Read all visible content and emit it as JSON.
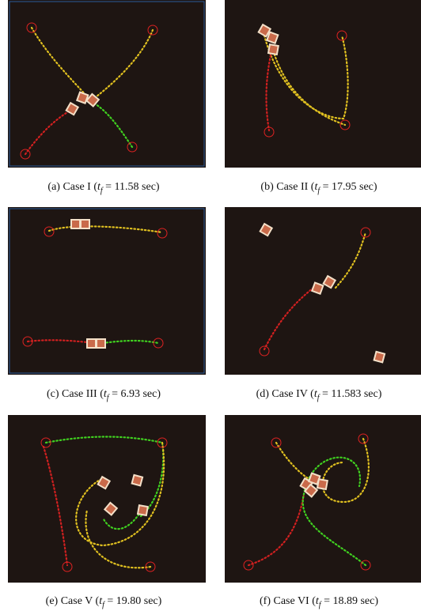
{
  "figure": {
    "captions": [
      {
        "lead": "(a) Case I (",
        "var": "t",
        "sub": "f",
        "rest": " = 11.58 sec)"
      },
      {
        "lead": "(b) Case II (",
        "var": "t",
        "sub": "f",
        "rest": " = 17.95 sec)"
      },
      {
        "lead": "(c) Case III (",
        "var": "t",
        "sub": "f",
        "rest": " = 6.93 sec)"
      },
      {
        "lead": "(d) Case IV (",
        "var": "t",
        "sub": "f",
        "rest": " = 11.583 sec)"
      },
      {
        "lead": "(e) Case V (",
        "var": "t",
        "sub": "f",
        "rest": " = 19.80 sec)"
      },
      {
        "lead": "(f) Case VI (",
        "var": "t",
        "sub": "f",
        "rest": " = 18.89 sec)"
      }
    ]
  }
}
